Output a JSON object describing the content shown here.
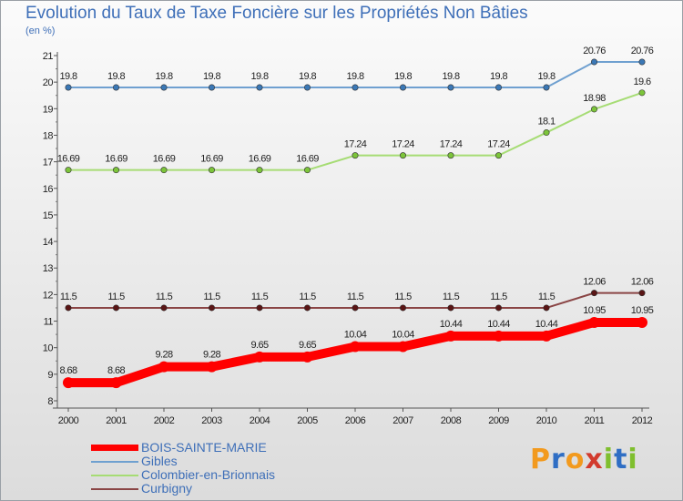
{
  "header": {
    "title": "Evolution du Taux de Taxe Foncière sur les Propriétés Non Bâties",
    "unit": "(en %)"
  },
  "logo": {
    "letters": [
      "P",
      "r",
      "o",
      "x",
      "i",
      "t",
      "i"
    ],
    "colors": [
      "#f29a1e",
      "#2f6ec4",
      "#f29a1e",
      "#d23b2e",
      "#7fbf2e",
      "#2f6ec4",
      "#7fbf2e"
    ]
  },
  "chart_data": {
    "type": "line",
    "title": "Evolution du Taux de Taxe Foncière sur les Propriétés Non Bâties",
    "ylabel": "(en %)",
    "xlabel": "",
    "ylim": [
      8,
      21
    ],
    "yticks": [
      8,
      9,
      10,
      11,
      12,
      13,
      14,
      15,
      16,
      17,
      18,
      19,
      20,
      21
    ],
    "grid": false,
    "legend_position": "bottom-left",
    "x": [
      "2000",
      "2001",
      "2002",
      "2003",
      "2004",
      "2005",
      "2006",
      "2007",
      "2008",
      "2009",
      "2010",
      "2011",
      "2012"
    ],
    "series": [
      {
        "name": "Gibles",
        "color": "#6fa0d0",
        "marker": "#3b78b6",
        "bold": false,
        "values": [
          19.8,
          19.8,
          19.8,
          19.8,
          19.8,
          19.8,
          19.8,
          19.8,
          19.8,
          19.8,
          19.8,
          20.76,
          20.76
        ],
        "labels": [
          "19.8",
          "19.8",
          "19.8",
          "19.8",
          "19.8",
          "19.8",
          "19.8",
          "19.8",
          "19.8",
          "19.8",
          "19.8",
          "20.76",
          "20.76"
        ]
      },
      {
        "name": "Colombier-en-Brionnais",
        "color": "#a6dc74",
        "marker": "#7cc43a",
        "bold": false,
        "values": [
          16.69,
          16.69,
          16.69,
          16.69,
          16.69,
          16.69,
          17.24,
          17.24,
          17.24,
          17.24,
          18.1,
          18.98,
          19.6
        ],
        "labels": [
          "16.69",
          "16.69",
          "16.69",
          "16.69",
          "16.69",
          "16.69",
          "17.24",
          "17.24",
          "17.24",
          "17.24",
          "18.1",
          "18.98",
          "19.6"
        ]
      },
      {
        "name": "Curbigny",
        "color": "#8a4545",
        "marker": "#5a1515",
        "bold": false,
        "values": [
          11.5,
          11.5,
          11.5,
          11.5,
          11.5,
          11.5,
          11.5,
          11.5,
          11.5,
          11.5,
          11.5,
          12.06,
          12.06
        ],
        "labels": [
          "11.5",
          "11.5",
          "11.5",
          "11.5",
          "11.5",
          "11.5",
          "11.5",
          "11.5",
          "11.5",
          "11.5",
          "11.5",
          "12.06",
          "12.06"
        ]
      },
      {
        "name": "BOIS-SAINTE-MARIE",
        "color": "#ff0000",
        "marker": "#ff0000",
        "bold": true,
        "values": [
          8.68,
          8.68,
          9.28,
          9.28,
          9.65,
          9.65,
          10.04,
          10.04,
          10.44,
          10.44,
          10.44,
          10.95,
          10.95
        ],
        "labels": [
          "8.68",
          "8.68",
          "9.28",
          "9.28",
          "9.65",
          "9.65",
          "10.04",
          "10.04",
          "10.44",
          "10.44",
          "10.44",
          "10.95",
          "10.95"
        ]
      }
    ],
    "legend": [
      "BOIS-SAINTE-MARIE",
      "Gibles",
      "Colombier-en-Brionnais",
      "Curbigny"
    ]
  }
}
